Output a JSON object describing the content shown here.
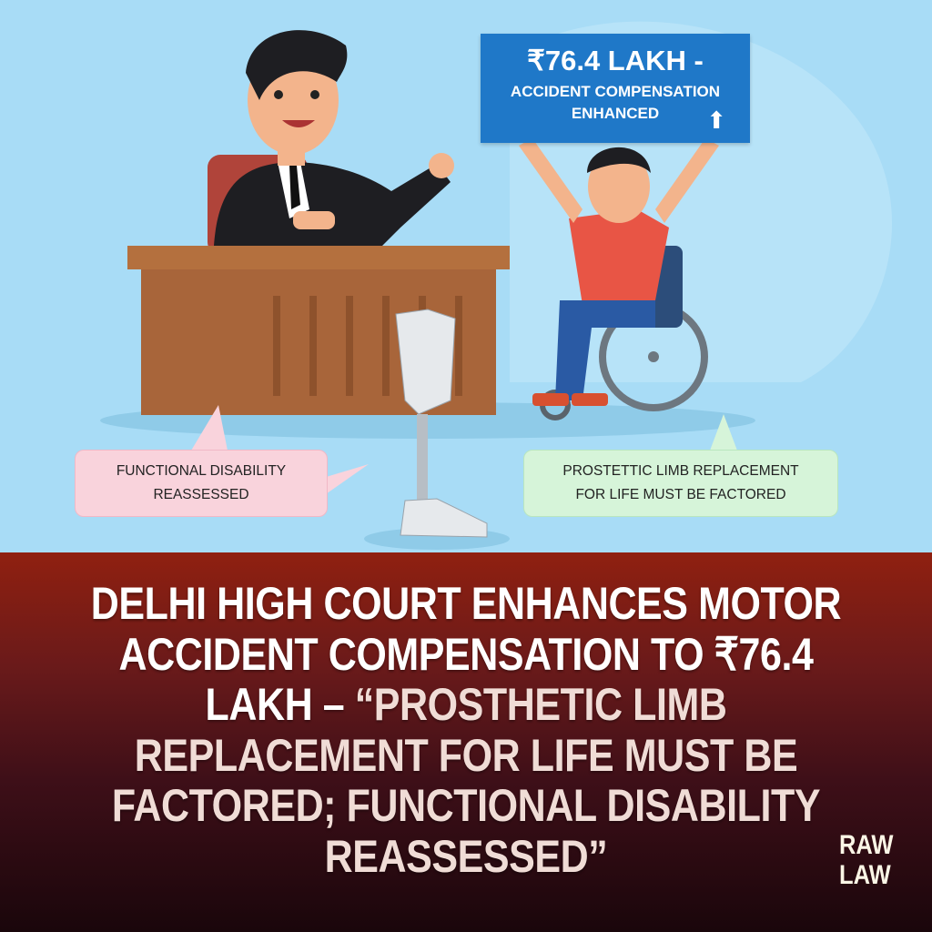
{
  "illustration": {
    "sign": {
      "line1": "₹76.4 LAKH -",
      "line2": "ACCIDENT COMPENSATION",
      "line3": "ENHANCED",
      "arrow": "⬆",
      "color": "#1f78c8"
    },
    "bubble_left": {
      "line1": "FUNCTIONAL DISABILITY",
      "line2": "REASSESSED",
      "color": "#f9d3dc"
    },
    "bubble_right": {
      "line1": "PROSTETTIC LIMB REPLACEMENT",
      "line2": "FOR LIFE MUST BE FACTORED",
      "color": "#d6f4d9"
    },
    "background_color": "#a8dcf6"
  },
  "headline": {
    "white_part": "DELHI HIGH COURT ENHANCES MOTOR ACCIDENT COMPENSATION TO ₹76.4 LAKH – ",
    "highlight_part": "“PROSTHETIC LIMB REPLACEMENT FOR LIFE MUST BE FACTORED; FUNCTIONAL DISABILITY REASSESSED”",
    "highlight_color": "#f0dcd6"
  },
  "brand": {
    "line1": "RAW",
    "line2": "LAW"
  }
}
